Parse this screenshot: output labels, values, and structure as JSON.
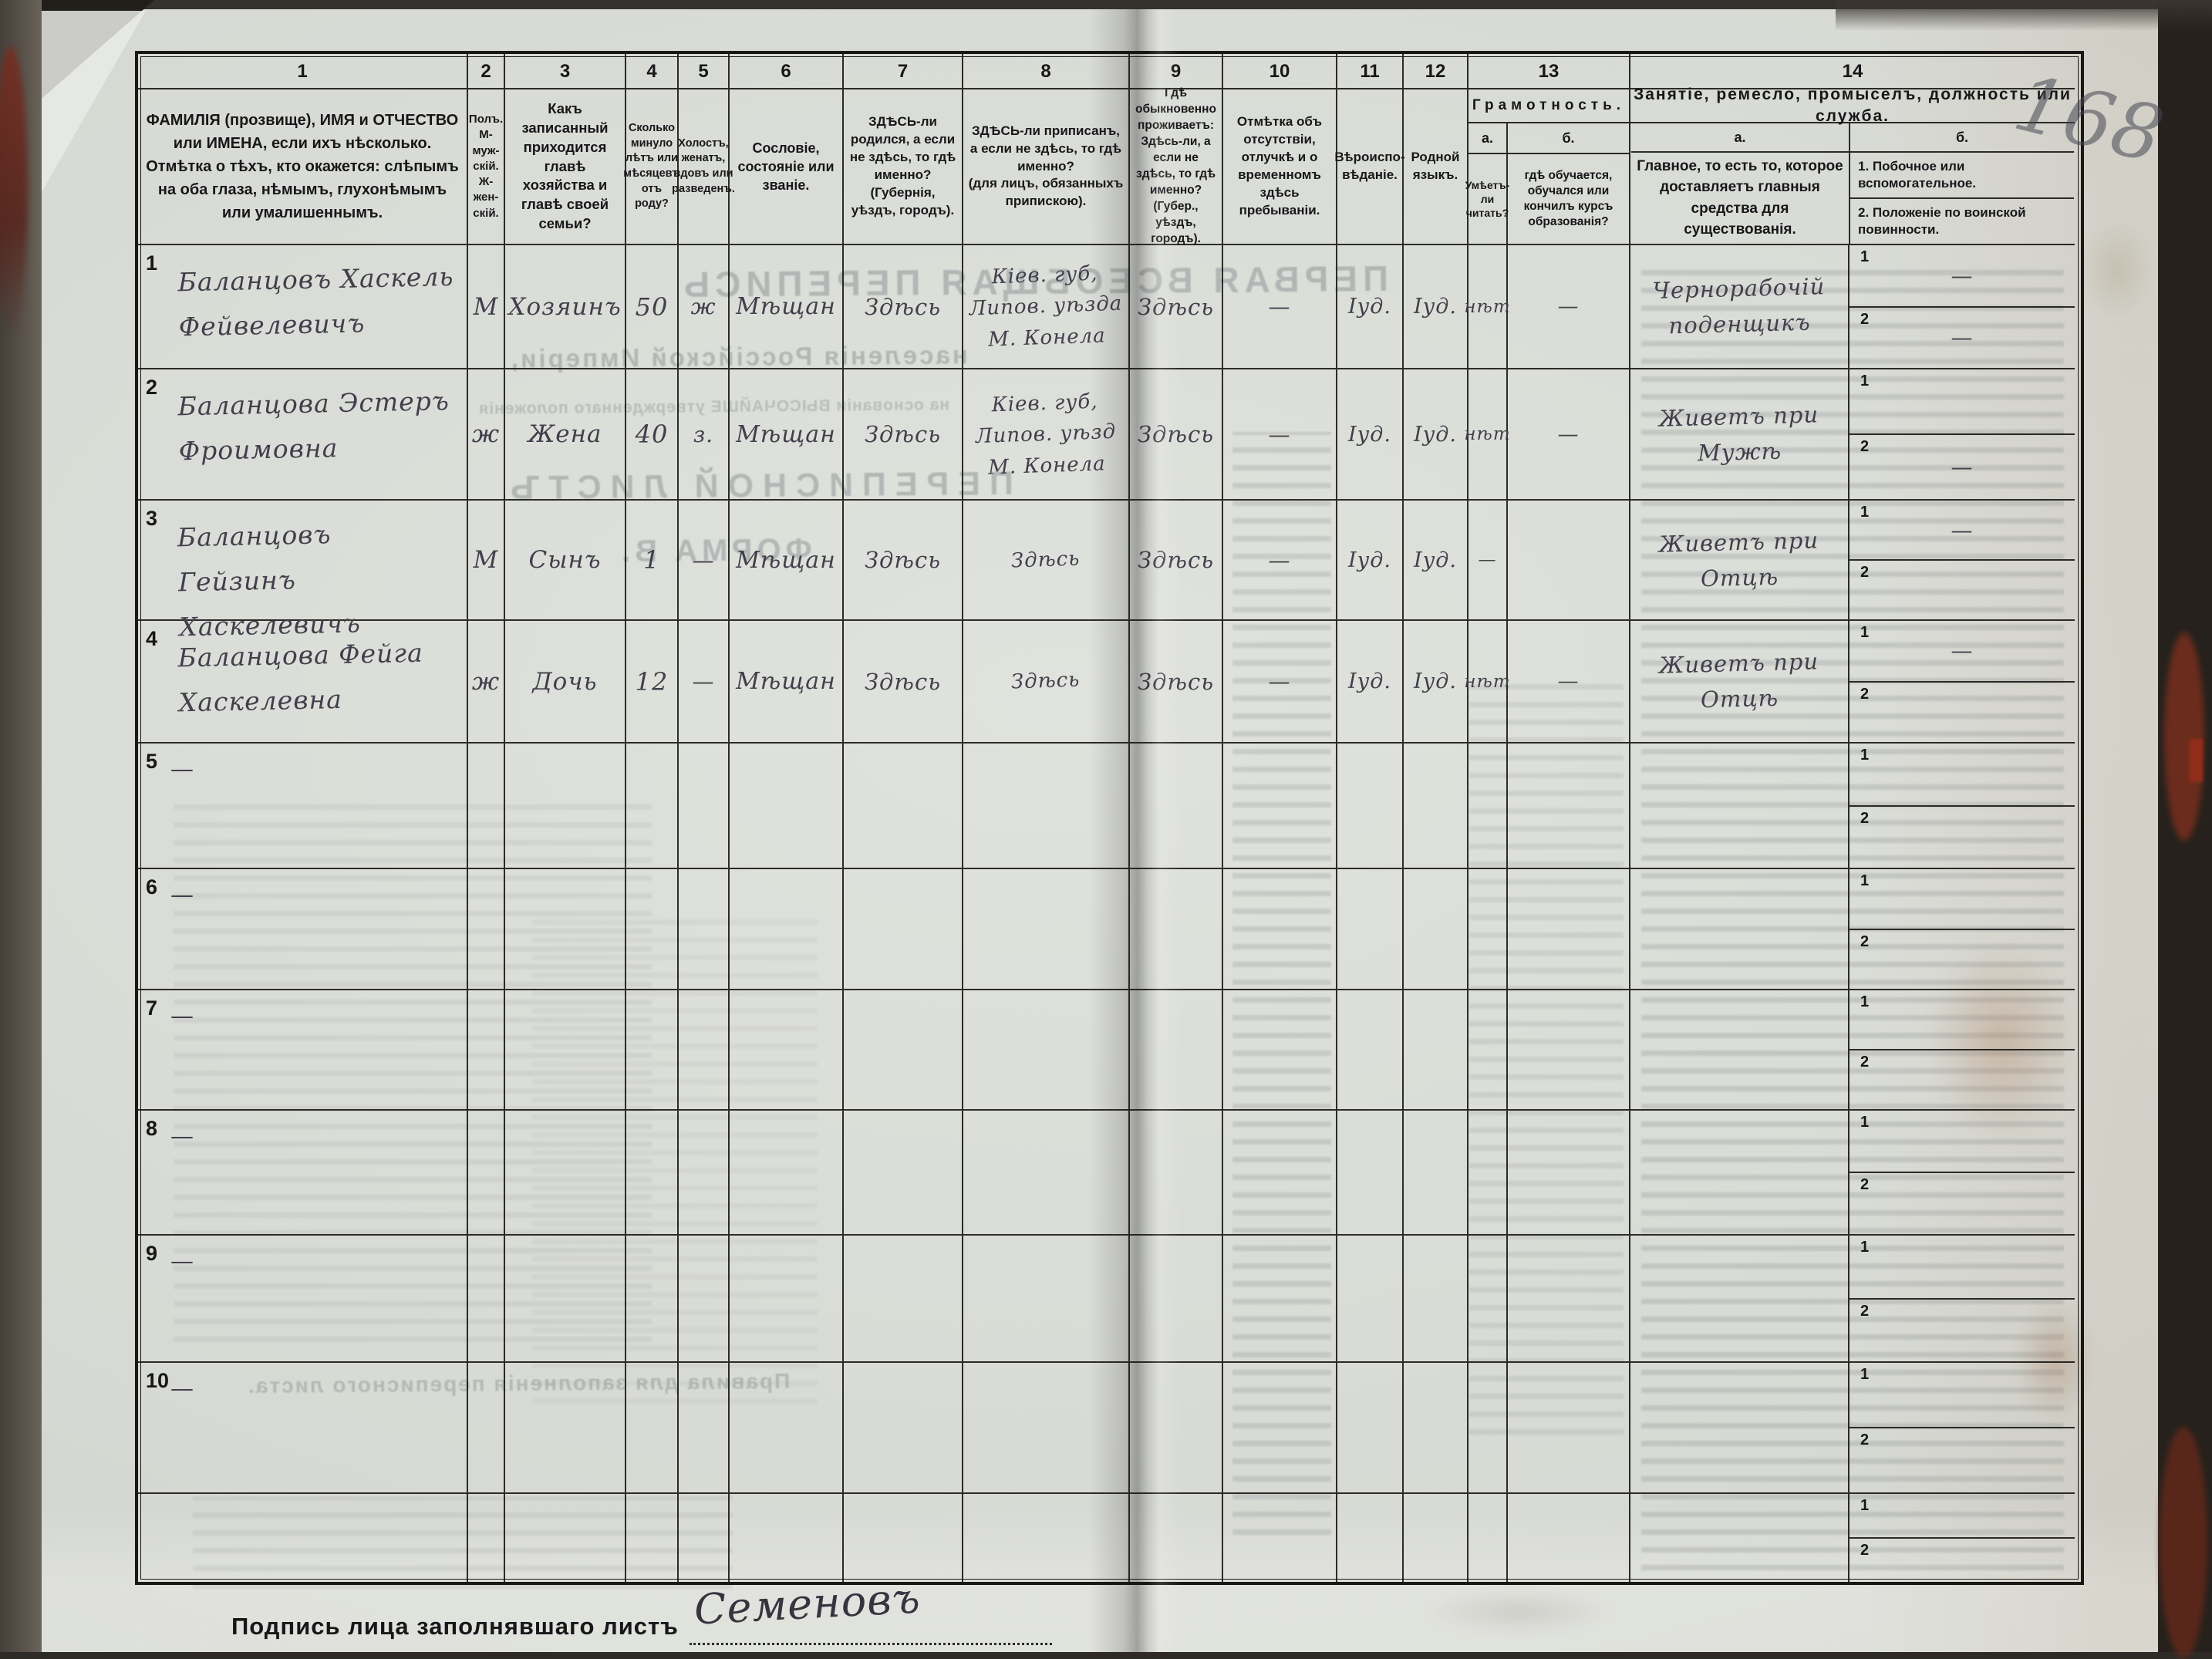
{
  "document": {
    "page_number": "168",
    "signature_label": "Подпись лица заполнявшаго листъ",
    "signature": "Семеновъ"
  },
  "labels": {
    "sub1": "1",
    "sub2": "2"
  },
  "ghost_text": {
    "title1": "ПЕРВАЯ ВСЕОБЩАЯ ПЕРЕПИСЬ",
    "title2": "населенія Россійской Имперіи,",
    "title3": "на основаніи ВЫСОЧАЙШЕ утвержденнаго положенія",
    "title4": "ПЕРЕПИСНОЙ ЛИСТЪ",
    "title5": "ФОРМА В.",
    "title6": "Правила для заполненія переписного листа."
  },
  "header": {
    "cols": [
      {
        "num": "1",
        "label": "ФАМИЛІЯ (прозвище), ИМЯ и ОТЧЕСТВО или ИМЕНА, если ихъ нѣсколько.\nОтмѣтка о тѣхъ, кто окажется: слѣпымъ на оба глаза, нѣмымъ, глухонѣмымъ или умалишеннымъ."
      },
      {
        "num": "2",
        "label": "Полъ.\nМ-муж-скій.\nЖ-жен-скій."
      },
      {
        "num": "3",
        "label": "Какъ записанный приходится главѣ хозяйства и главѣ своей семьи?"
      },
      {
        "num": "4",
        "label": "Сколько минуло лѣтъ или мѣсяцевъ отъ роду?"
      },
      {
        "num": "5",
        "label": "Холостъ, женатъ, вдовъ или разведенъ."
      },
      {
        "num": "6",
        "label": "Сословіе, состояніе или званіе."
      },
      {
        "num": "7",
        "label": "ЗДѢСЬ-ли родился, а если не здѣсь, то гдѣ именно?\n(Губернія, уѣздъ, городъ)."
      },
      {
        "num": "8",
        "label": "ЗДѢСЬ-ли приписанъ, а если не здѣсь, то гдѣ именно?\n(для лицъ, обязанныхъ припискою)."
      },
      {
        "num": "9",
        "label": "Гдѣ обыкновенно проживаетъ: Здѣсь-ли, а если не здѣсь, то гдѣ именно?\n(Губер., уѣздъ, городъ)."
      },
      {
        "num": "10",
        "label": "Отмѣтка объ отсутствіи, отлучкѣ и о временномъ здѣсь пребываніи."
      },
      {
        "num": "11",
        "label": "Вѣроиспо-вѣданіе."
      },
      {
        "num": "12",
        "label": "Родной языкъ."
      },
      {
        "num": "13",
        "label": "Грамотность.",
        "sub_a": "а.",
        "sub_b": "б.",
        "text_a": "Умѣетъ-ли читать?",
        "text_b": "гдѣ обучается, обучался или кончилъ курсъ образованія?"
      },
      {
        "num": "14",
        "label": "Занятіе, ремесло, промыселъ, должность или служба.",
        "sub_a": "а.",
        "sub_b": "б.",
        "text_a": "Главное, то есть то, которое доставляетъ главныя средства для существованія.",
        "text_b1": "1. Побочное или вспомогательное.",
        "text_b2": "2. Положеніе по воинской повинности."
      }
    ]
  },
  "rows": [
    {
      "n": "1",
      "mark": "",
      "name": "Баланцовъ Хаскель Фейвелевичъ",
      "c2": "М",
      "c3": "Хозяинъ",
      "c4": "50",
      "c5": "ж",
      "c6": "Мѣщан",
      "c7": "Здѣсь",
      "c8": "Кіев. губ, Липов. уѣзда М. Конела",
      "c9": "Здѣсь",
      "c10": "—",
      "c11": "Іуд.",
      "c12": "Іуд.",
      "c13a": "нѣт",
      "c13b": "—",
      "c14a": "Чернорабочій поденщикъ",
      "c14b1": "—",
      "c14b2": "—"
    },
    {
      "n": "2",
      "mark": "",
      "name": "Баланцова Эстеръ Фроимовна",
      "c2": "ж",
      "c3": "Жена",
      "c4": "40",
      "c5": "з.",
      "c6": "Мѣщан",
      "c7": "Здѣсь",
      "c8": "Кіев. губ, Липов. уѣзд М. Конела",
      "c9": "Здѣсь",
      "c10": "—",
      "c11": "Іуд.",
      "c12": "Іуд.",
      "c13a": "нѣт",
      "c13b": "—",
      "c14a": "Живетъ при Мужѣ",
      "c14b1": "",
      "c14b2": "—"
    },
    {
      "n": "3",
      "mark": "",
      "name": "Баланцовъ Гейзинъ Хаскелевичъ",
      "c2": "М",
      "c3": "Сынъ",
      "c4": "1",
      "c5": "—",
      "c6": "Мѣщан",
      "c7": "Здѣсь",
      "c8": "Здѣсь",
      "c9": "Здѣсь",
      "c10": "—",
      "c11": "Іуд.",
      "c12": "Іуд.",
      "c13a": "—",
      "c13b": "",
      "c14a": "Живетъ при Отцѣ",
      "c14b1": "—",
      "c14b2": ""
    },
    {
      "n": "4",
      "mark": "",
      "name": "Баланцова Фейга Хаскелевна",
      "c2": "ж",
      "c3": "Дочь",
      "c4": "12",
      "c5": "—",
      "c6": "Мѣщан",
      "c7": "Здѣсь",
      "c8": "Здѣсь",
      "c9": "Здѣсь",
      "c10": "—",
      "c11": "Іуд.",
      "c12": "Іуд.",
      "c13a": "нѣт",
      "c13b": "—",
      "c14a": "Живетъ при Отцѣ",
      "c14b1": "—",
      "c14b2": ""
    },
    {
      "n": "5",
      "mark": "—",
      "name": "",
      "c2": "",
      "c3": "",
      "c4": "",
      "c5": "",
      "c6": "",
      "c7": "",
      "c8": "",
      "c9": "",
      "c10": "",
      "c11": "",
      "c12": "",
      "c13a": "",
      "c13b": "",
      "c14a": "",
      "c14b1": "",
      "c14b2": ""
    },
    {
      "n": "6",
      "mark": "—",
      "name": "",
      "c2": "",
      "c3": "",
      "c4": "",
      "c5": "",
      "c6": "",
      "c7": "",
      "c8": "",
      "c9": "",
      "c10": "",
      "c11": "",
      "c12": "",
      "c13a": "",
      "c13b": "",
      "c14a": "",
      "c14b1": "",
      "c14b2": ""
    },
    {
      "n": "7",
      "mark": "—",
      "name": "",
      "c2": "",
      "c3": "",
      "c4": "",
      "c5": "",
      "c6": "",
      "c7": "",
      "c8": "",
      "c9": "",
      "c10": "",
      "c11": "",
      "c12": "",
      "c13a": "",
      "c13b": "",
      "c14a": "",
      "c14b1": "",
      "c14b2": ""
    },
    {
      "n": "8",
      "mark": "—",
      "name": "",
      "c2": "",
      "c3": "",
      "c4": "",
      "c5": "",
      "c6": "",
      "c7": "",
      "c8": "",
      "c9": "",
      "c10": "",
      "c11": "",
      "c12": "",
      "c13a": "",
      "c13b": "",
      "c14a": "",
      "c14b1": "",
      "c14b2": ""
    },
    {
      "n": "9",
      "mark": "—",
      "name": "",
      "c2": "",
      "c3": "",
      "c4": "",
      "c5": "",
      "c6": "",
      "c7": "",
      "c8": "",
      "c9": "",
      "c10": "",
      "c11": "",
      "c12": "",
      "c13a": "",
      "c13b": "",
      "c14a": "",
      "c14b1": "",
      "c14b2": ""
    },
    {
      "n": "10",
      "mark": "—",
      "name": "",
      "c2": "",
      "c3": "",
      "c4": "",
      "c5": "",
      "c6": "",
      "c7": "",
      "c8": "",
      "c9": "",
      "c10": "",
      "c11": "",
      "c12": "",
      "c13a": "",
      "c13b": "",
      "c14a": "",
      "c14b1": "",
      "c14b2": ""
    },
    {
      "n": "",
      "mark": "",
      "name": "",
      "c2": "",
      "c3": "",
      "c4": "",
      "c5": "",
      "c6": "",
      "c7": "",
      "c8": "",
      "c9": "",
      "c10": "",
      "c11": "",
      "c12": "",
      "c13a": "",
      "c13b": "",
      "c14a": "",
      "c14b1": "",
      "c14b2": ""
    }
  ]
}
